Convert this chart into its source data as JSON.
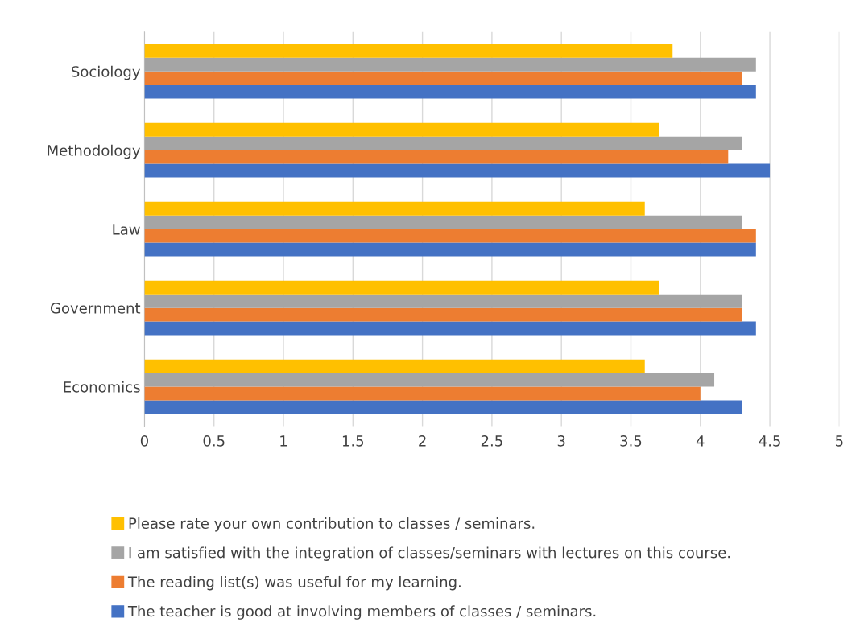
{
  "chart_data": {
    "type": "bar",
    "orientation": "horizontal",
    "categories": [
      "Sociology",
      "Methodology",
      "Law",
      "Government",
      "Economics"
    ],
    "series": [
      {
        "name": "The teacher is good at involving members of classes / seminars.",
        "color": "#4472c4",
        "values": [
          4.4,
          4.5,
          4.4,
          4.4,
          4.3
        ]
      },
      {
        "name": "The reading list(s) was useful for my learning.",
        "color": "#ed7d31",
        "values": [
          4.3,
          4.2,
          4.4,
          4.3,
          4.0
        ]
      },
      {
        "name": "I am satisfied with the integration of classes/seminars with lectures on this course.",
        "color": "#a5a5a5",
        "values": [
          4.4,
          4.3,
          4.3,
          4.3,
          4.1
        ]
      },
      {
        "name": "Please rate your own contribution to classes / seminars.",
        "color": "#ffc000",
        "values": [
          3.8,
          3.7,
          3.6,
          3.7,
          3.6
        ]
      }
    ],
    "xlim": [
      0,
      5
    ],
    "xticks": [
      0,
      0.5,
      1,
      1.5,
      2,
      2.5,
      3,
      3.5,
      4,
      4.5,
      5
    ],
    "grid": "x",
    "legend": "bottom"
  }
}
